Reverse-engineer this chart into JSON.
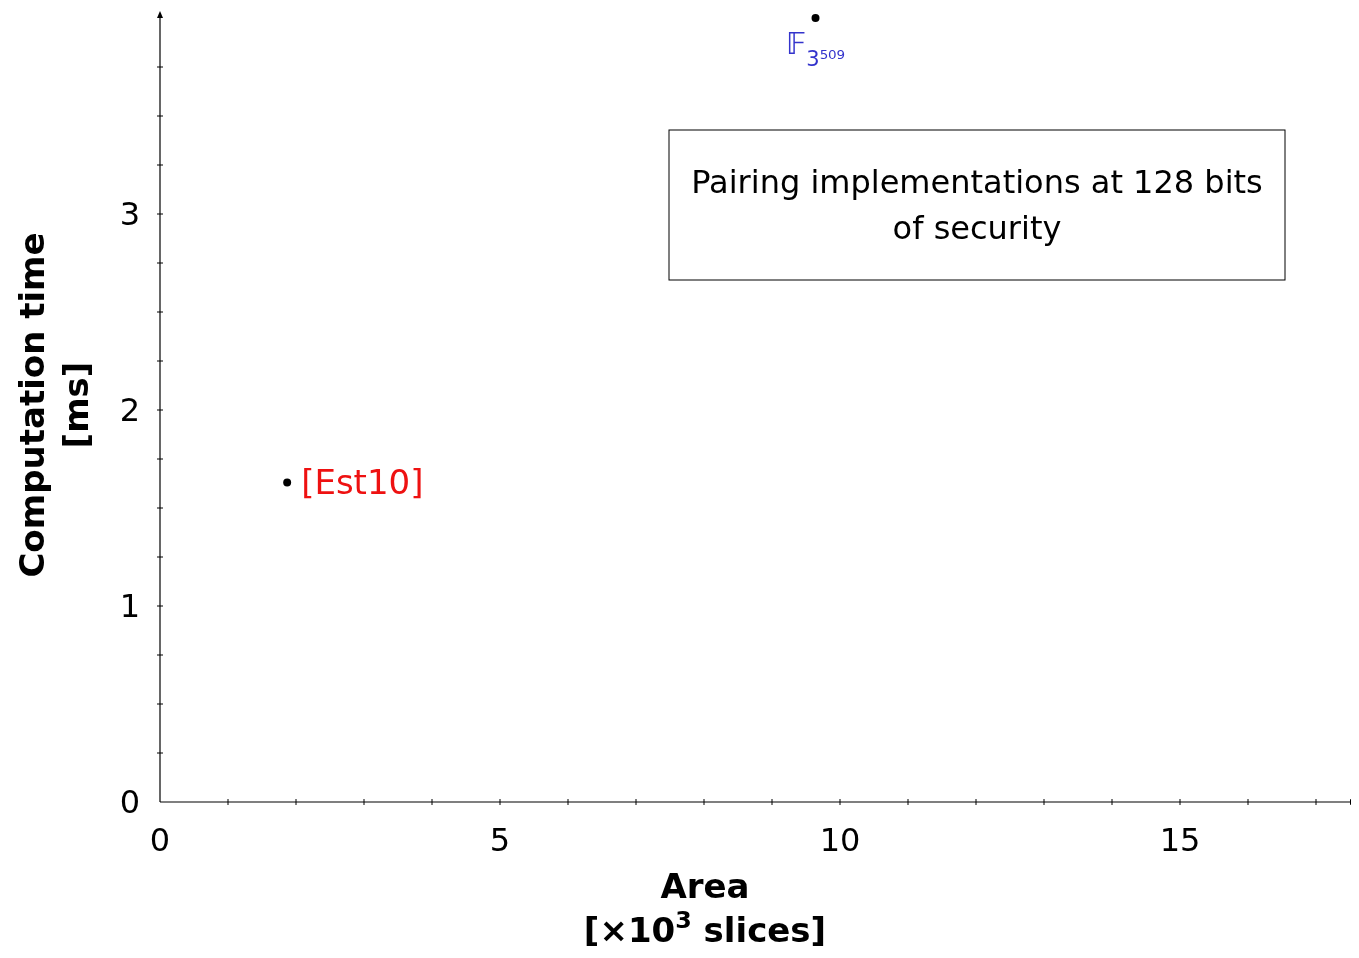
{
  "chart_data": {
    "type": "scatter",
    "xlabel": "Area\n[×10$^{3}$ slices]",
    "ylabel": "Computation time\n[ms]",
    "xlim": [
      0,
      17.5
    ],
    "ylim": [
      0,
      4
    ],
    "xticks": [
      0,
      {
        "value": 1,
        "label": null
      },
      {
        "value": 2,
        "label": null
      },
      {
        "value": 3,
        "label": null
      },
      {
        "value": 4,
        "label": null
      },
      5,
      {
        "value": 6,
        "label": null
      },
      {
        "value": 7,
        "label": null
      },
      {
        "value": 8,
        "label": null
      },
      {
        "value": 9,
        "label": null
      },
      10,
      {
        "value": 11,
        "label": null
      },
      {
        "value": 12,
        "label": null
      },
      {
        "value": 13,
        "label": null
      },
      {
        "value": 14,
        "label": null
      },
      15,
      {
        "value": 16,
        "label": null
      },
      {
        "value": 17,
        "label": null
      }
    ],
    "yticks": [
      0,
      {
        "value": 0.25,
        "label": null
      },
      {
        "value": 0.5,
        "label": null
      },
      {
        "value": 0.75,
        "label": null
      },
      1,
      {
        "value": 1.25,
        "label": null
      },
      {
        "value": 1.5,
        "label": null
      },
      {
        "value": 1.75,
        "label": null
      },
      2,
      {
        "value": 2.25,
        "label": null
      },
      {
        "value": 2.5,
        "label": null
      },
      {
        "value": 2.75,
        "label": null
      },
      3,
      {
        "value": 3.25,
        "label": null
      },
      {
        "value": 3.5,
        "label": null
      },
      {
        "value": 3.75,
        "label": null
      }
    ],
    "marker": "circle",
    "grid": false,
    "series": [
      {
        "name": "[Est10]",
        "color": "#000000",
        "x": [
          1.87
        ],
        "values": [
          1.63
        ]
      },
      {
        "name": "𝔽$_{3⁵⁰⁹}$",
        "color": "#000000",
        "x": [
          9.64
        ],
        "values": [
          4.0
        ]
      }
    ],
    "annotations": [
      "Pairing implementations at 128 bits of security"
    ]
  }
}
